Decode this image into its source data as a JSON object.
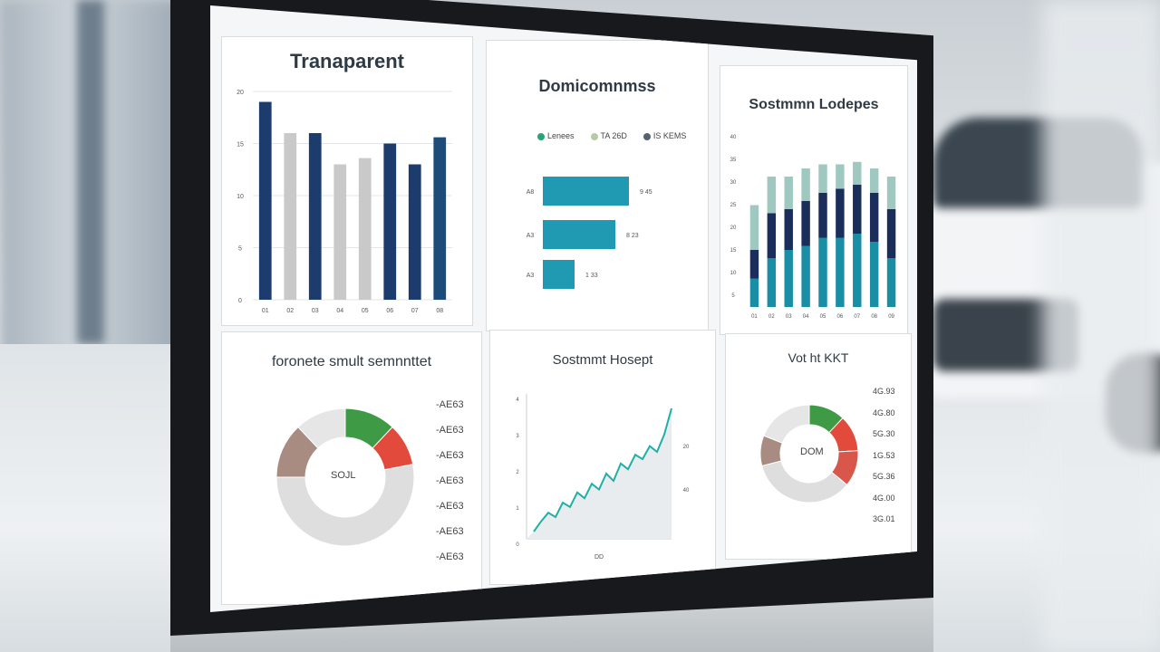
{
  "panels": {
    "p1": {
      "title": "Tranaparent",
      "y_ticks": [
        "20",
        "15",
        "10",
        "5",
        "0"
      ],
      "x_ticks": [
        "01",
        "02",
        "03",
        "04",
        "05",
        "06",
        "07",
        "08"
      ],
      "chart_data": {
        "type": "bar",
        "categories": [
          "01",
          "02",
          "03",
          "04",
          "05",
          "06",
          "07",
          "08"
        ],
        "values": [
          95,
          80,
          80,
          65,
          68,
          75,
          65,
          78
        ],
        "colors": [
          "#1c3c6e",
          "#c9c9c9",
          "#1c3c6e",
          "#c9c9c9",
          "#c9c9c9",
          "#1c3c6e",
          "#1c3c6e",
          "#1c4d7a"
        ]
      }
    },
    "p2": {
      "title": "Domicomnmss",
      "legend": [
        {
          "label": "Lenees",
          "color": "#2aa37a"
        },
        {
          "label": "TA 26D",
          "color": "#b8c9a8"
        },
        {
          "label": "IS KEMS",
          "color": "#556270"
        }
      ],
      "bar_labels": [
        "A8",
        "A3",
        "A3"
      ],
      "value_labels": [
        "9 45",
        "8 23",
        "1 33"
      ],
      "chart_data": {
        "type": "bar",
        "orientation": "horizontal",
        "values": [
          95,
          80,
          35
        ],
        "color": "#1f9ab2"
      }
    },
    "p3": {
      "title": "Sostmmn Lodepes",
      "y_ticks": [
        "40",
        "35",
        "30",
        "25",
        "20",
        "15",
        "10",
        "5"
      ],
      "x_ticks": [
        "01",
        "02",
        "03",
        "04",
        "05",
        "06",
        "07",
        "08",
        "09"
      ],
      "chart_data": {
        "type": "bar",
        "stacked": true,
        "categories": [
          "01",
          "02",
          "03",
          "04",
          "05",
          "06",
          "07",
          "08",
          "09"
        ],
        "series": [
          {
            "values": [
              35,
              60,
              70,
              75,
              85,
              85,
              90,
              80,
              60
            ],
            "color": "#1a8ea4"
          },
          {
            "values": [
              35,
              55,
              50,
              55,
              55,
              60,
              60,
              60,
              60
            ],
            "color": "#1b2d5a"
          },
          {
            "values": [
              55,
              45,
              40,
              40,
              35,
              30,
              28,
              30,
              40
            ],
            "color": "#9fc9c0"
          }
        ]
      }
    },
    "p4": {
      "title": "foronete smult semnnttet",
      "center_label": "SOJL",
      "legend": [
        "-AE63",
        "-AE63",
        "-AE63",
        "-AE63",
        "-AE63",
        "-AE63",
        "-AE63"
      ],
      "chart_data": {
        "type": "pie",
        "donut": true,
        "values": [
          12,
          10,
          53,
          13,
          12
        ],
        "colors": [
          "#3e9a45",
          "#e24a3b",
          "#dedede",
          "#a88c82",
          "#e6e6e6"
        ]
      }
    },
    "p5": {
      "title": "Sostmmt Hosept",
      "x_label": "DD",
      "y_ticks": [
        "4",
        "3",
        "2",
        "1",
        "0"
      ],
      "right_labels": [
        "20",
        "40"
      ],
      "chart_data": {
        "type": "line",
        "x": [
          1,
          2,
          3,
          4,
          5,
          6,
          7,
          8,
          9,
          10,
          11,
          12,
          13,
          14,
          15,
          16,
          17,
          18,
          19,
          20
        ],
        "y": [
          5,
          12,
          18,
          15,
          25,
          22,
          32,
          28,
          38,
          34,
          45,
          40,
          52,
          48,
          58,
          55,
          64,
          60,
          72,
          90
        ],
        "color": "#1fb0a8"
      }
    },
    "p6": {
      "title": "Vot ht KKT",
      "center_label": "DOM",
      "legend": [
        "4G.93",
        "4G.80",
        "5G.30",
        "1G.53",
        "5G.36",
        "4G.00",
        "3G.01"
      ],
      "chart_data": {
        "type": "pie",
        "donut": true,
        "values": [
          12,
          12,
          12,
          35,
          10,
          19
        ],
        "colors": [
          "#3e9a45",
          "#e24a3b",
          "#d9574a",
          "#dedede",
          "#a88c82",
          "#e6e6e6"
        ]
      }
    }
  }
}
